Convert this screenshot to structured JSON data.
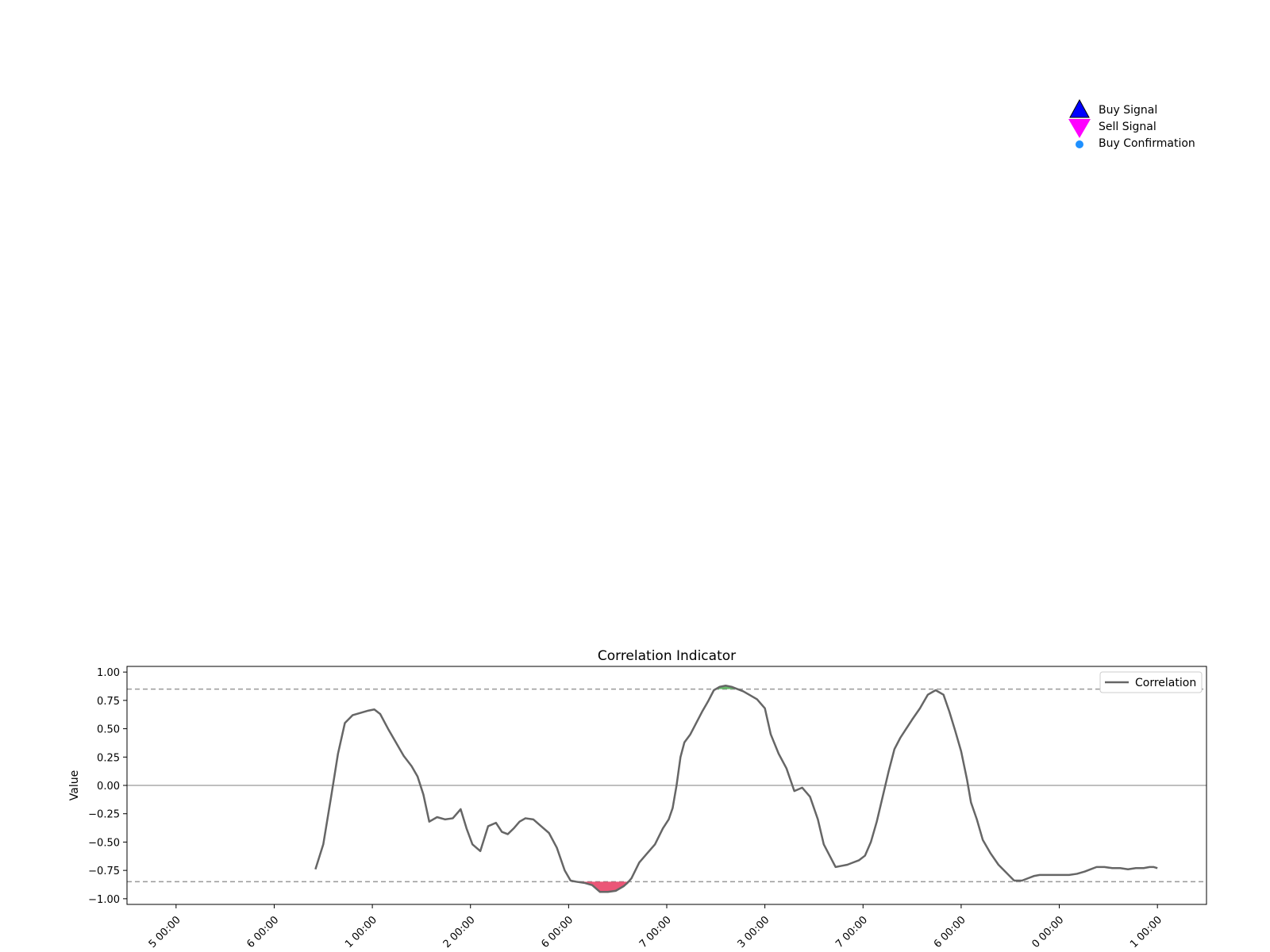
{
  "top_legend": {
    "entries": [
      {
        "label": "Buy Signal",
        "marker": "triangle-up-icon",
        "color": "#0000ff",
        "edge": "#000000"
      },
      {
        "label": "Sell Signal",
        "marker": "triangle-down-icon",
        "color": "#ff00ff"
      },
      {
        "label": "Buy Confirmation",
        "marker": "dot-icon",
        "color": "#1e90ff"
      }
    ]
  },
  "chart_data": {
    "type": "line",
    "title": "Correlation Indicator",
    "xlabel": "",
    "ylabel": "Value",
    "ylim": [
      -1.05,
      1.05
    ],
    "yticks": [
      "1.00",
      "0.75",
      "0.50",
      "0.25",
      "0.00",
      "−0.25",
      "−0.50",
      "−0.75",
      "−1.00"
    ],
    "ytick_values": [
      1.0,
      0.75,
      0.5,
      0.25,
      0.0,
      -0.25,
      -0.5,
      -0.75,
      -1.0
    ],
    "xlim": [
      -0.5,
      10.5
    ],
    "xtick_labels": [
      "5 00:00",
      "6 00:00",
      "1 00:00",
      "2 00:00",
      "6 00:00",
      "7 00:00",
      "3 00:00",
      "7 00:00",
      "6 00:00",
      "0 00:00",
      "1 00:00"
    ],
    "upper_threshold": 0.85,
    "lower_threshold": -0.85,
    "zero_line": 0.0,
    "colors": {
      "line": "#666666",
      "threshold": "#999999",
      "zero": "#aaaaaa",
      "fill_high": "#4caf50",
      "fill_low": "#e8385f"
    },
    "legend": {
      "position": "top-right",
      "entries": [
        "Correlation"
      ]
    },
    "series": [
      {
        "name": "Correlation",
        "x": [
          1.42,
          1.5,
          1.58,
          1.65,
          1.72,
          1.8,
          1.88,
          1.96,
          2.02,
          2.08,
          2.16,
          2.24,
          2.32,
          2.4,
          2.46,
          2.52,
          2.58,
          2.66,
          2.74,
          2.82,
          2.9,
          2.96,
          3.02,
          3.1,
          3.18,
          3.26,
          3.32,
          3.38,
          3.44,
          3.5,
          3.56,
          3.64,
          3.72,
          3.8,
          3.88,
          3.96,
          4.02,
          4.08,
          4.16,
          4.24,
          4.32,
          4.4,
          4.48,
          4.56,
          4.6,
          4.64,
          4.72,
          4.8,
          4.88,
          4.96,
          5.02,
          5.06,
          5.1,
          5.14,
          5.18,
          5.24,
          5.3,
          5.36,
          5.42,
          5.48,
          5.54,
          5.6,
          5.66,
          5.72,
          5.78,
          5.84,
          5.92,
          6.0,
          6.06,
          6.14,
          6.22,
          6.3,
          6.38,
          6.46,
          6.54,
          6.6,
          6.66,
          6.72,
          6.78,
          6.84,
          6.9,
          6.96,
          7.02,
          7.08,
          7.14,
          7.2,
          7.26,
          7.32,
          7.38,
          7.44,
          7.5,
          7.58,
          7.66,
          7.74,
          7.82,
          7.88,
          7.94,
          8.0,
          8.06,
          8.1,
          8.16,
          8.22,
          8.3,
          8.38,
          8.46,
          8.54,
          8.62,
          8.68,
          8.74,
          8.8,
          8.86,
          8.94,
          9.02,
          9.1,
          9.18,
          9.26,
          9.32,
          9.38,
          9.46,
          9.54,
          9.62,
          9.7,
          9.78,
          9.86,
          9.92,
          9.96,
          10.0
        ],
        "values": [
          -0.74,
          -0.52,
          -0.1,
          0.28,
          0.55,
          0.62,
          0.64,
          0.66,
          0.67,
          0.63,
          0.5,
          0.38,
          0.26,
          0.17,
          0.08,
          -0.08,
          -0.32,
          -0.28,
          -0.3,
          -0.29,
          -0.21,
          -0.38,
          -0.52,
          -0.58,
          -0.36,
          -0.33,
          -0.41,
          -0.43,
          -0.38,
          -0.32,
          -0.29,
          -0.3,
          -0.36,
          -0.42,
          -0.55,
          -0.75,
          -0.84,
          -0.85,
          -0.86,
          -0.88,
          -0.94,
          -0.94,
          -0.93,
          -0.89,
          -0.86,
          -0.82,
          -0.68,
          -0.6,
          -0.52,
          -0.38,
          -0.3,
          -0.2,
          0.0,
          0.25,
          0.38,
          0.45,
          0.55,
          0.65,
          0.74,
          0.84,
          0.87,
          0.88,
          0.87,
          0.85,
          0.83,
          0.8,
          0.76,
          0.68,
          0.45,
          0.28,
          0.15,
          -0.05,
          -0.02,
          -0.1,
          -0.3,
          -0.52,
          -0.62,
          -0.72,
          -0.71,
          -0.7,
          -0.68,
          -0.66,
          -0.62,
          -0.5,
          -0.32,
          -0.1,
          0.12,
          0.32,
          0.42,
          0.5,
          0.58,
          0.68,
          0.8,
          0.84,
          0.8,
          0.65,
          0.48,
          0.3,
          0.05,
          -0.15,
          -0.3,
          -0.48,
          -0.6,
          -0.7,
          -0.77,
          -0.84,
          -0.84,
          -0.82,
          -0.8,
          -0.79,
          -0.79,
          -0.79,
          -0.79,
          -0.79,
          -0.78,
          -0.76,
          -0.74,
          -0.72,
          -0.72,
          -0.73,
          -0.73,
          -0.74,
          -0.73,
          -0.73,
          -0.72,
          -0.72,
          -0.73
        ]
      }
    ]
  }
}
